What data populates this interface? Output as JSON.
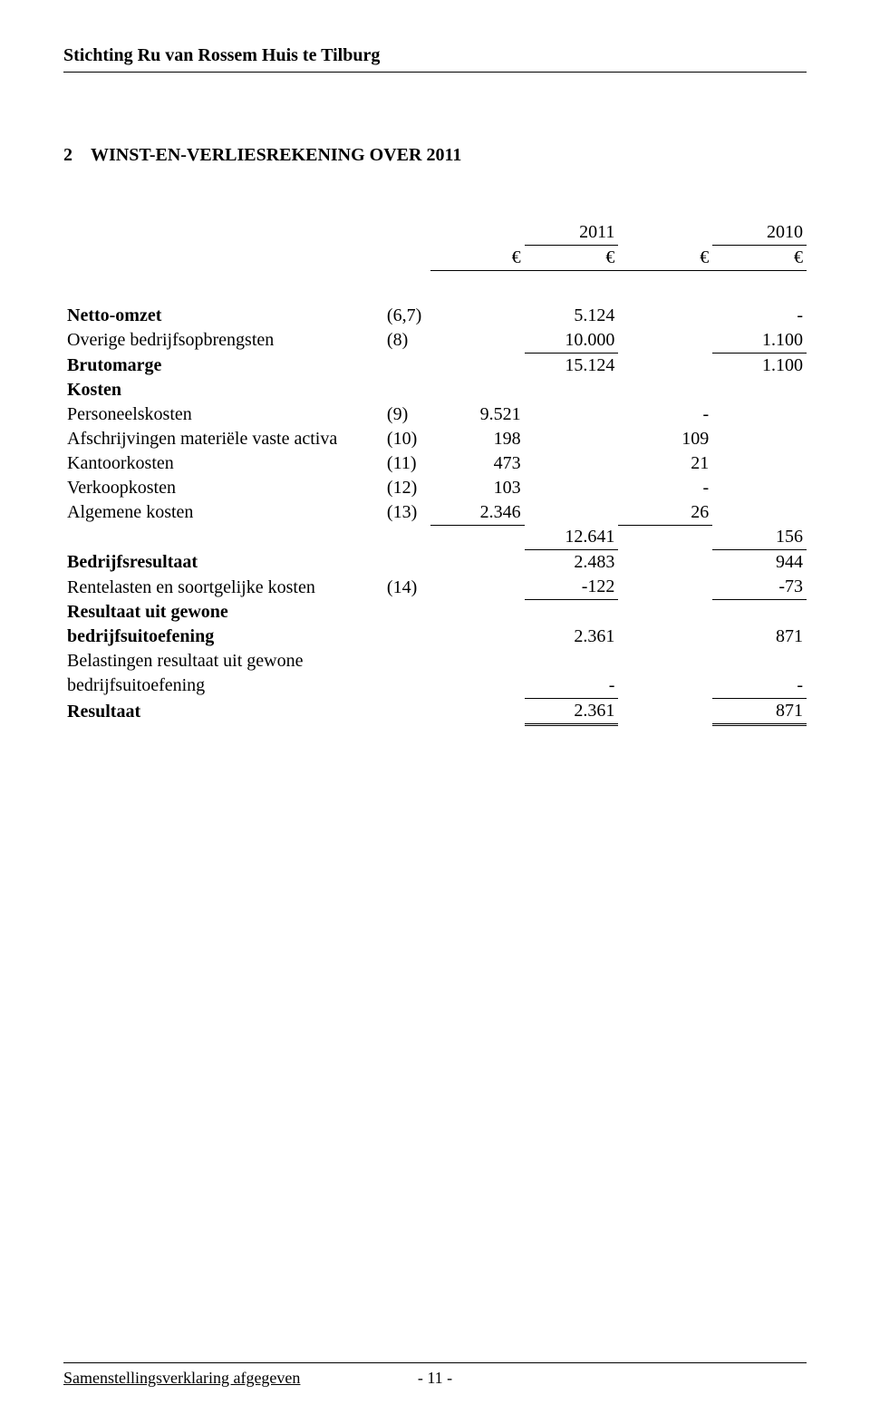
{
  "header": {
    "org": "Stichting Ru van Rossem Huis te Tilburg"
  },
  "section": {
    "number": "2",
    "title": "WINST-EN-VERLIESREKENING OVER 2011"
  },
  "years": {
    "current": "2011",
    "prior": "2010"
  },
  "currency": "€",
  "revenue": {
    "netto_omzet": {
      "label": "Netto-omzet",
      "note": "(6,7)",
      "cur": "5.124",
      "prior": "-"
    },
    "overige": {
      "label": "Overige bedrijfsopbrengsten",
      "note": "(8)",
      "cur": "10.000",
      "prior": "1.100"
    }
  },
  "brutomarge": {
    "label": "Brutomarge",
    "cur": "15.124",
    "prior": "1.100"
  },
  "kosten_header": "Kosten",
  "kosten": {
    "personeel": {
      "label": "Personeelskosten",
      "note": "(9)",
      "cur": "9.521",
      "prior": "-"
    },
    "afschrijv": {
      "label": "Afschrijvingen materiële vaste activa",
      "note": "(10)",
      "cur": "198",
      "prior": "109"
    },
    "kantoor": {
      "label": "Kantoorkosten",
      "note": "(11)",
      "cur": "473",
      "prior": "21"
    },
    "verkoop": {
      "label": "Verkoopkosten",
      "note": "(12)",
      "cur": "103",
      "prior": "-"
    },
    "algemene": {
      "label": "Algemene kosten",
      "note": "(13)",
      "cur": "2.346",
      "prior": "26"
    }
  },
  "kosten_totaal": {
    "cur": "12.641",
    "prior": "156"
  },
  "bedrijfsresultaat": {
    "label": "Bedrijfsresultaat",
    "cur": "2.483",
    "prior": "944"
  },
  "rentelasten": {
    "label": "Rentelasten en soortgelijke kosten",
    "note": "(14)",
    "cur": "-122",
    "prior": "-73"
  },
  "res_gewone": {
    "label1": "Resultaat uit gewone",
    "label2": "bedrijfsuitoefening",
    "cur": "2.361",
    "prior": "871"
  },
  "belastingen": {
    "label1": "Belastingen resultaat uit gewone",
    "label2": "bedrijfsuitoefening",
    "cur": "-",
    "prior": "-"
  },
  "resultaat": {
    "label": "Resultaat",
    "cur": "2.361",
    "prior": "871"
  },
  "footer": {
    "left": "Samenstellingsverklaring afgegeven",
    "page": "- 11 -"
  }
}
